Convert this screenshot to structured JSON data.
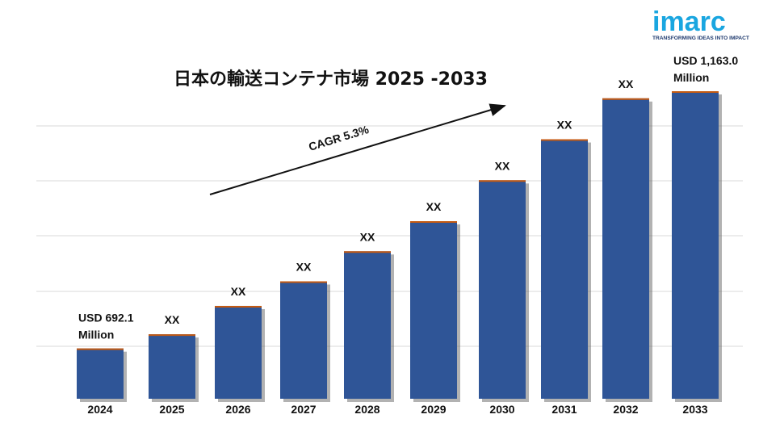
{
  "brand": {
    "logo_text": "imarc",
    "tagline": "TRANSFORMING IDEAS INTO IMPACT",
    "color": "#1aa6e0"
  },
  "chart_data": {
    "type": "bar",
    "title": "日本の輸送コンテナ市場 2025 -2033",
    "categories": [
      "2024",
      "2025",
      "2026",
      "2027",
      "2028",
      "2029",
      "2030",
      "2031",
      "2032",
      "2033"
    ],
    "values": [
      692.1,
      718,
      770,
      815,
      870,
      925,
      1000,
      1075,
      1150,
      1163.0
    ],
    "data_labels": [
      "USD 692.1 Million",
      "XX",
      "XX",
      "XX",
      "XX",
      "XX",
      "XX",
      "XX",
      "XX",
      "USD 1,163.0 Million"
    ],
    "value_unit": "USD Million",
    "ylim": [
      600,
      1200
    ],
    "grid": true,
    "legend": "none",
    "annotation": "CAGR 5.3%",
    "bar_color": "#2f5597",
    "bar_edge_color": "#c55a11",
    "xlabel": "",
    "ylabel": ""
  }
}
